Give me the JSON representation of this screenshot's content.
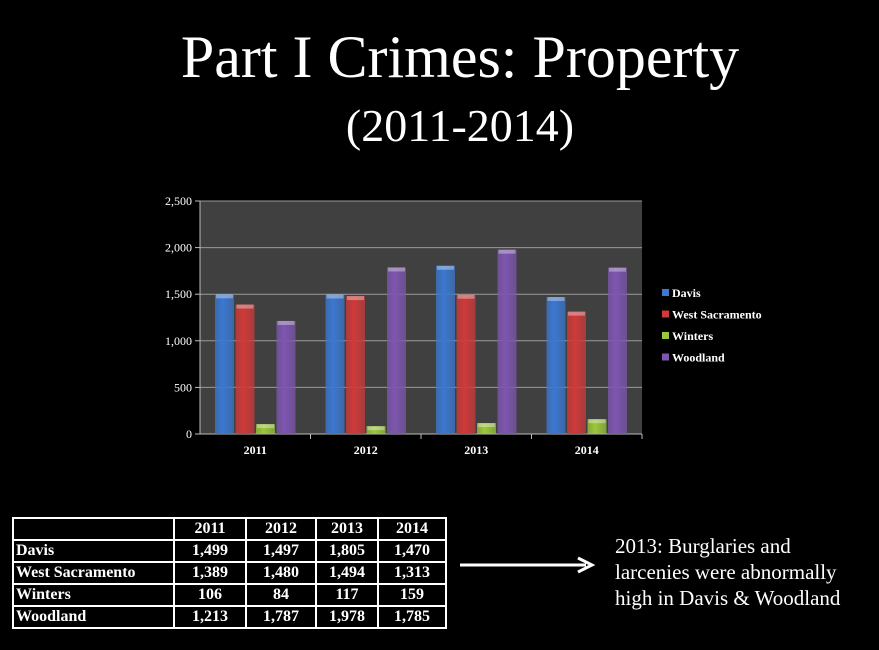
{
  "title": "Part I Crimes: Property",
  "subtitle": "(2011-2014)",
  "chart_data": {
    "type": "bar",
    "categories": [
      "2011",
      "2012",
      "2013",
      "2014"
    ],
    "series": [
      {
        "name": "Davis",
        "values": [
          1499,
          1497,
          1805,
          1470
        ],
        "color": "#3b78d0"
      },
      {
        "name": "West Sacramento",
        "values": [
          1389,
          1480,
          1494,
          1313
        ],
        "color": "#d03a3a"
      },
      {
        "name": "Winters",
        "values": [
          106,
          84,
          117,
          159
        ],
        "color": "#9bc83a"
      },
      {
        "name": "Woodland",
        "values": [
          1213,
          1787,
          1978,
          1785
        ],
        "color": "#7e56b0"
      }
    ],
    "ylim": [
      0,
      2500
    ],
    "yticks": [
      0,
      500,
      1000,
      1500,
      2000,
      2500
    ],
    "ytick_labels": [
      "0",
      "500",
      "1,000",
      "1,500",
      "2,000",
      "2,500"
    ],
    "grid": true,
    "legend": "right",
    "plot_bg": "#404040"
  },
  "table": {
    "headers": [
      "",
      "2011",
      "2012",
      "2013",
      "2014"
    ],
    "rows": [
      [
        "Davis",
        "1,499",
        "1,497",
        "1,805",
        "1,470"
      ],
      [
        "West Sacramento",
        "1,389",
        "1,480",
        "1,494",
        "1,313"
      ],
      [
        "Winters",
        "106",
        "84",
        "117",
        "159"
      ],
      [
        "Woodland",
        "1,213",
        "1,787",
        "1,978",
        "1,785"
      ]
    ]
  },
  "note": [
    "2013: Burglaries and",
    "larcenies were abnormally",
    "high in Davis & Woodland"
  ]
}
